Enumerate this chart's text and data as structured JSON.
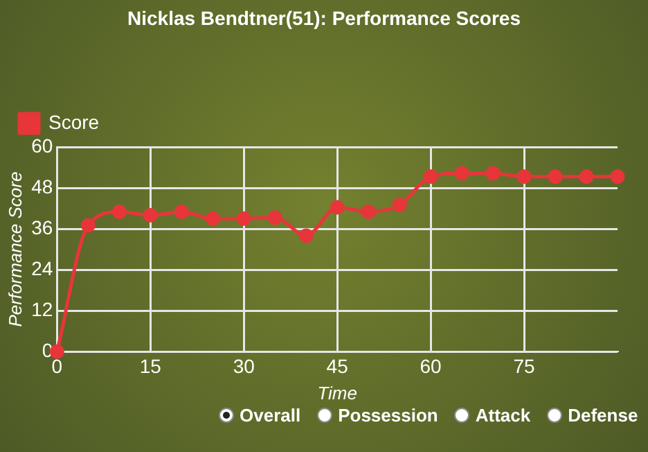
{
  "chart_data": {
    "type": "line",
    "title": "Nicklas Bendtner(51): Performance Scores",
    "xlabel": "Time",
    "ylabel": "Performance Score",
    "x": [
      0,
      5,
      10,
      15,
      20,
      25,
      30,
      35,
      40,
      45,
      50,
      55,
      60,
      65,
      70,
      75,
      80,
      85,
      90
    ],
    "series": [
      {
        "name": "Score",
        "color": "#e8353a",
        "values": [
          0,
          37,
          41,
          40,
          41,
          39,
          39,
          39.3,
          34,
          42.3,
          41,
          43,
          51.3,
          52.3,
          52.3,
          51.3,
          51.3,
          51.3,
          51.3
        ]
      }
    ],
    "xlim": [
      0,
      90
    ],
    "xticks": [
      0,
      15,
      30,
      45,
      60,
      75
    ],
    "ylim": [
      0,
      60
    ],
    "yticks": [
      0,
      12,
      24,
      36,
      48,
      60
    ],
    "grid": true,
    "legend": "top left",
    "marker": "circle",
    "line_style": "solid",
    "annotations": [
      "Overall",
      "Possession",
      "Attack",
      "Defense"
    ]
  }
}
